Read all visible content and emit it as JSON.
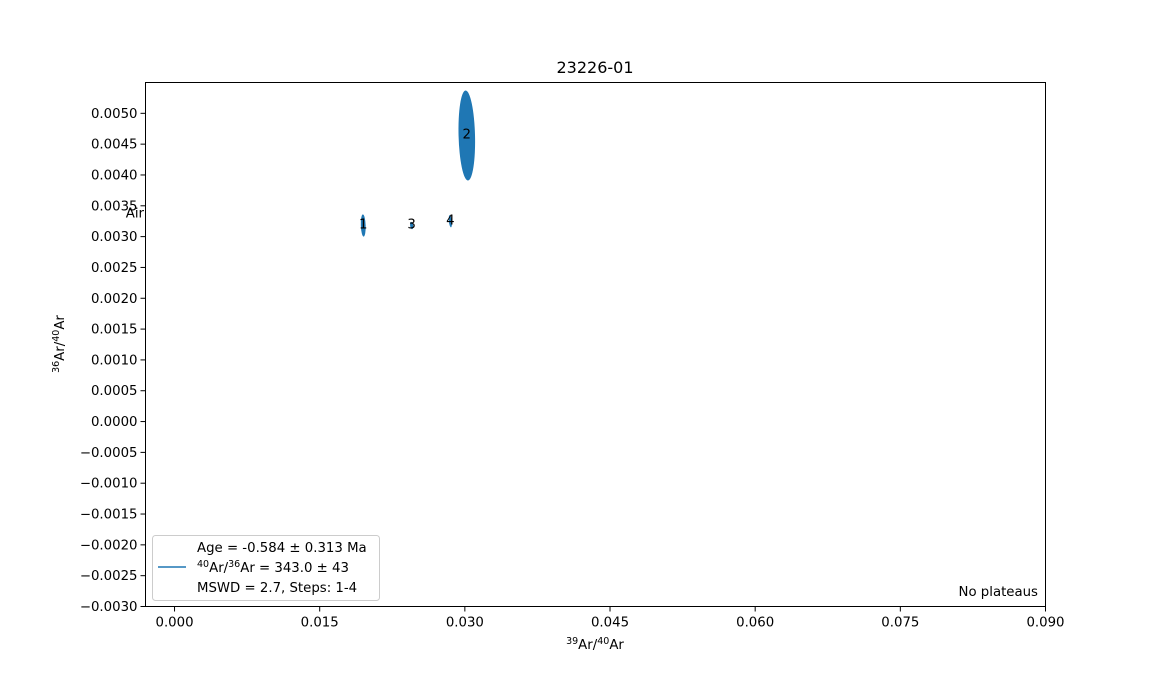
{
  "chart_data": {
    "type": "scatter",
    "title": "23226-01",
    "xlabel": {
      "base": "Ar",
      "sup1": "39",
      "sup2": "40",
      "sep": "/"
    },
    "ylabel": {
      "base": "Ar",
      "sup1": "36",
      "sup2": "40",
      "sep": "/"
    },
    "xlim": [
      -0.003,
      0.09
    ],
    "ylim": [
      -0.003,
      0.0055
    ],
    "xticks": [
      "0.000",
      "0.015",
      "0.030",
      "0.045",
      "0.060",
      "0.075",
      "0.090"
    ],
    "xtick_values": [
      0,
      0.015,
      0.03,
      0.045,
      0.06,
      0.075,
      0.09
    ],
    "yticks": [
      "0.0050",
      "0.0045",
      "0.0040",
      "0.0035",
      "0.0030",
      "0.0025",
      "0.0020",
      "0.0015",
      "0.0010",
      "0.0005",
      "0.0000",
      "−0.0005",
      "−0.0010",
      "−0.0015",
      "−0.0020",
      "−0.0025",
      "−0.0030"
    ],
    "ytick_values": [
      0.005,
      0.0045,
      0.004,
      0.0035,
      0.003,
      0.0025,
      0.002,
      0.0015,
      0.001,
      0.0005,
      0,
      -0.0005,
      -0.001,
      -0.0015,
      -0.002,
      -0.0025,
      -0.003
    ],
    "grid": false,
    "color": "#1f77b4",
    "ellipses": [
      {
        "label": "1",
        "x": 0.0195,
        "y": 0.00318,
        "sx": 0.00025,
        "sy": 0.00018,
        "angle": -2
      },
      {
        "label": "2",
        "x": 0.0302,
        "y": 0.00464,
        "sx": 0.00085,
        "sy": 0.00073,
        "angle": -1.5
      },
      {
        "label": "3",
        "x": 0.0245,
        "y": 0.00318,
        "sx": 0.00012,
        "sy": 6e-05,
        "angle": -8
      },
      {
        "label": "4",
        "x": 0.0285,
        "y": 0.00325,
        "sx": 0.00015,
        "sy": 0.0001,
        "angle": -6
      }
    ],
    "air_label": "Air",
    "air_y": 0.00338,
    "legend": {
      "placement": "lower-left",
      "line1": "Age = -0.584 ± 0.313 Ma",
      "line2": {
        "pre_sup": "40",
        "mid": "Ar/",
        "mid_sup": "36",
        "post": "Ar = 343.0 ± 43"
      },
      "line3": "MSWD = 2.7, Steps: 1-4"
    },
    "annotation": "No plateaus"
  }
}
